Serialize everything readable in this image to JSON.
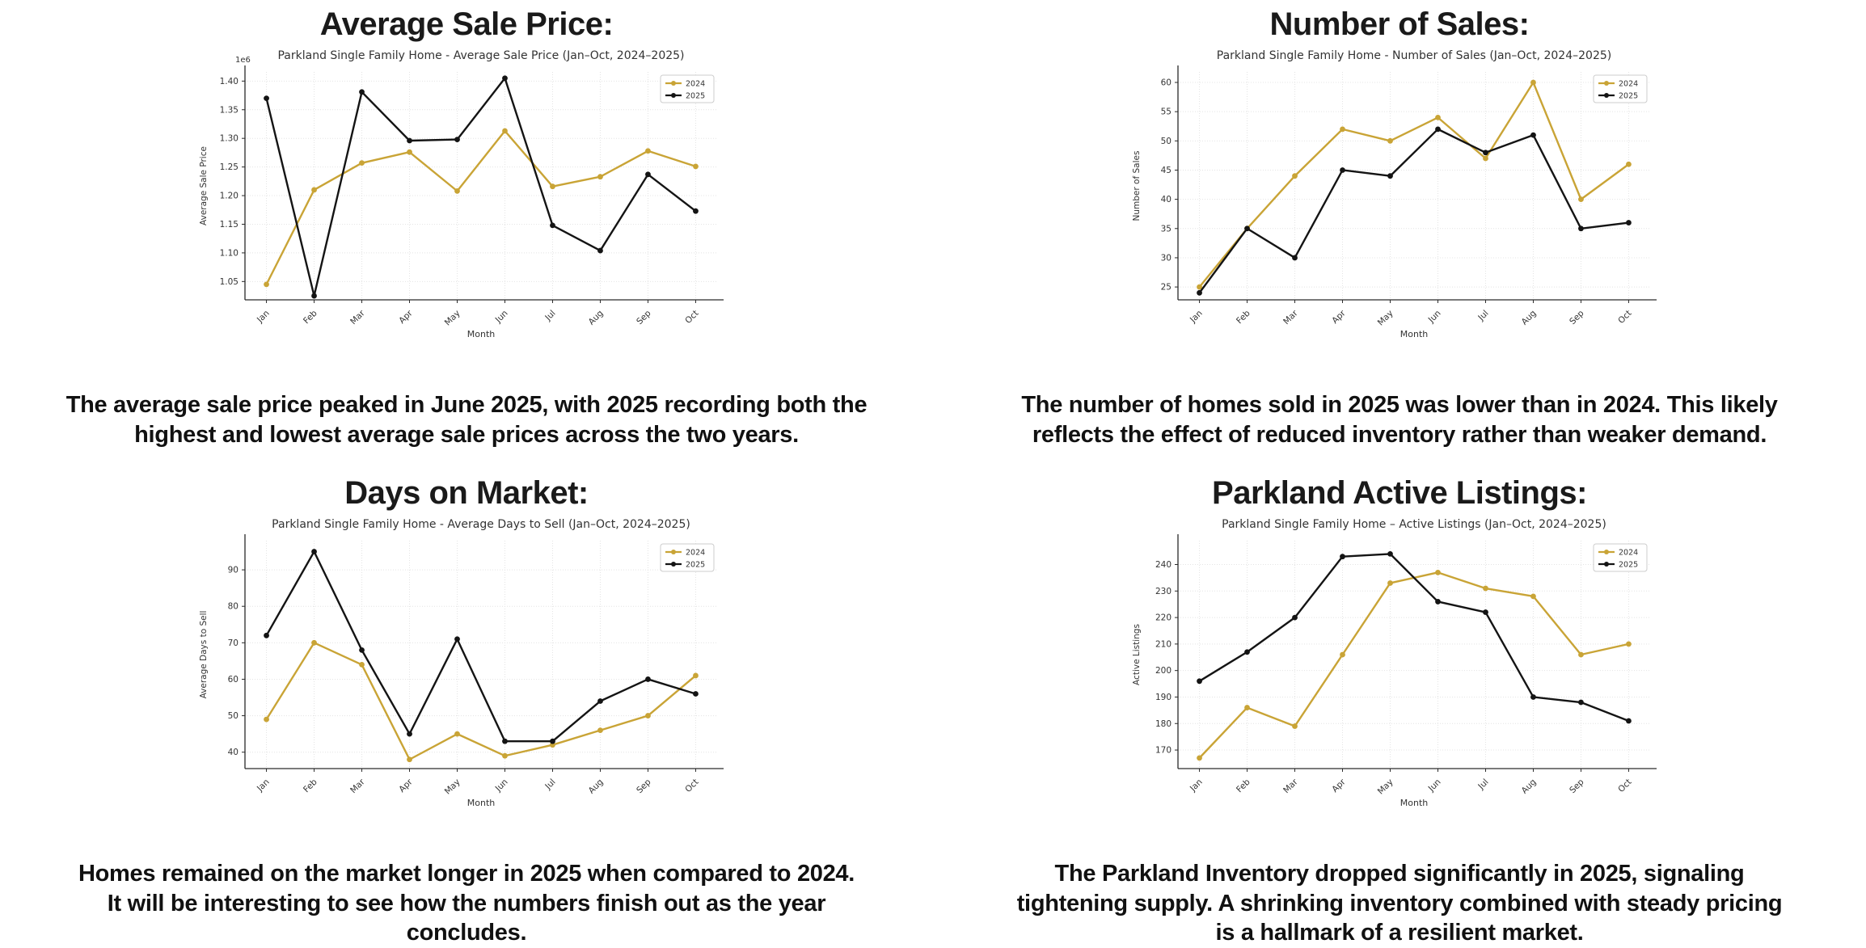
{
  "page": {
    "background": "#ffffff"
  },
  "colors": {
    "series_2024": "#C9A436",
    "series_2025": "#141414",
    "grid": "#e4e4e4",
    "spine": "#2a2a2a"
  },
  "sections": [
    {
      "header": "Average Sale Price:",
      "caption_lines": [
        "The average sale price peaked in June 2025, with 2025 recording both the",
        "highest and lowest average sale prices across the two years."
      ]
    },
    {
      "header": "Number of Sales:",
      "caption_lines": [
        "The number of homes sold in 2025 was lower than in 2024. This likely",
        "reflects the effect of reduced inventory rather than weaker demand."
      ]
    },
    {
      "header": "Days on Market:",
      "caption_lines": [
        "Homes remained on the market longer in 2025 when compared to 2024.",
        "It will be interesting to see how the numbers finish out as the year",
        "concludes."
      ]
    },
    {
      "header": "Parkland Active Listings:",
      "caption_lines": [
        "The Parkland Inventory dropped significantly in 2025, signaling",
        "tightening supply.  A shrinking inventory combined with steady pricing",
        "is a hallmark of a resilient market."
      ]
    }
  ],
  "chart_data": [
    {
      "type": "line",
      "title": "Parkland Single Family Home - Average Sale Price (Jan–Oct, 2024–2025)",
      "xlabel": "Month",
      "ylabel": "Average Sale Price",
      "offset_text": "1e6",
      "grid": true,
      "legend_position": "top-right",
      "categories": [
        "Jan",
        "Feb",
        "Mar",
        "Apr",
        "May",
        "Jun",
        "Jul",
        "Aug",
        "Sep",
        "Oct"
      ],
      "series": [
        {
          "name": "2024",
          "color": "#C9A436",
          "values": [
            1045000,
            1210000,
            1257000,
            1276000,
            1208000,
            1313000,
            1216000,
            1233000,
            1278000,
            1251000
          ]
        },
        {
          "name": "2025",
          "color": "#141414",
          "values": [
            1370000,
            1025000,
            1381000,
            1296000,
            1298000,
            1405000,
            1148000,
            1104000,
            1237000,
            1173000
          ]
        }
      ],
      "ylim": [
        1018000,
        1416000
      ],
      "yticks": [
        1050000,
        1100000,
        1150000,
        1200000,
        1250000,
        1300000,
        1350000,
        1400000
      ],
      "ytick_labels": [
        "1.05",
        "1.10",
        "1.15",
        "1.20",
        "1.25",
        "1.30",
        "1.35",
        "1.40"
      ]
    },
    {
      "type": "line",
      "title": "Parkland Single Family Home - Number of Sales (Jan–Oct, 2024–2025)",
      "xlabel": "Month",
      "ylabel": "Number of Sales",
      "grid": true,
      "legend_position": "top-right",
      "categories": [
        "Jan",
        "Feb",
        "Mar",
        "Apr",
        "May",
        "Jun",
        "Jul",
        "Aug",
        "Sep",
        "Oct"
      ],
      "series": [
        {
          "name": "2024",
          "color": "#C9A436",
          "values": [
            25,
            35,
            44,
            52,
            50,
            54,
            47,
            60,
            40,
            46
          ]
        },
        {
          "name": "2025",
          "color": "#141414",
          "values": [
            24,
            35,
            30,
            45,
            44,
            52,
            48,
            51,
            35,
            36
          ]
        }
      ],
      "ylim": [
        22.8,
        61.8
      ],
      "yticks": [
        25,
        30,
        35,
        40,
        45,
        50,
        55,
        60
      ],
      "ytick_labels": [
        "25",
        "30",
        "35",
        "40",
        "45",
        "50",
        "55",
        "60"
      ]
    },
    {
      "type": "line",
      "title": "Parkland Single Family Home - Average Days to Sell (Jan–Oct, 2024–2025)",
      "xlabel": "Month",
      "ylabel": "Average Days to Sell",
      "grid": true,
      "legend_position": "top-right",
      "categories": [
        "Jan",
        "Feb",
        "Mar",
        "Apr",
        "May",
        "Jun",
        "Jul",
        "Aug",
        "Sep",
        "Oct"
      ],
      "series": [
        {
          "name": "2024",
          "color": "#C9A436",
          "values": [
            49,
            70,
            64,
            38,
            45,
            39,
            42,
            46,
            50,
            61
          ]
        },
        {
          "name": "2025",
          "color": "#141414",
          "values": [
            72,
            95,
            68,
            45,
            71,
            43,
            43,
            54,
            60,
            56
          ]
        }
      ],
      "ylim": [
        35.5,
        98
      ],
      "yticks": [
        40,
        50,
        60,
        70,
        80,
        90
      ],
      "ytick_labels": [
        "40",
        "50",
        "60",
        "70",
        "80",
        "90"
      ]
    },
    {
      "type": "line",
      "title": "Parkland Single Family Home – Active Listings (Jan–Oct, 2024–2025)",
      "xlabel": "Month",
      "ylabel": "Active Listings",
      "grid": true,
      "legend_position": "top-right",
      "categories": [
        "Jan",
        "Feb",
        "Mar",
        "Apr",
        "May",
        "Jun",
        "Jul",
        "Aug",
        "Sep",
        "Oct"
      ],
      "series": [
        {
          "name": "2024",
          "color": "#C9A436",
          "values": [
            167,
            186,
            179,
            206,
            233,
            237,
            231,
            228,
            206,
            210
          ]
        },
        {
          "name": "2025",
          "color": "#141414",
          "values": [
            196,
            207,
            220,
            243,
            244,
            226,
            222,
            190,
            188,
            181
          ]
        }
      ],
      "ylim": [
        163,
        249
      ],
      "yticks": [
        170,
        180,
        190,
        200,
        210,
        220,
        230,
        240
      ],
      "ytick_labels": [
        "170",
        "180",
        "190",
        "200",
        "210",
        "220",
        "230",
        "240"
      ]
    }
  ]
}
